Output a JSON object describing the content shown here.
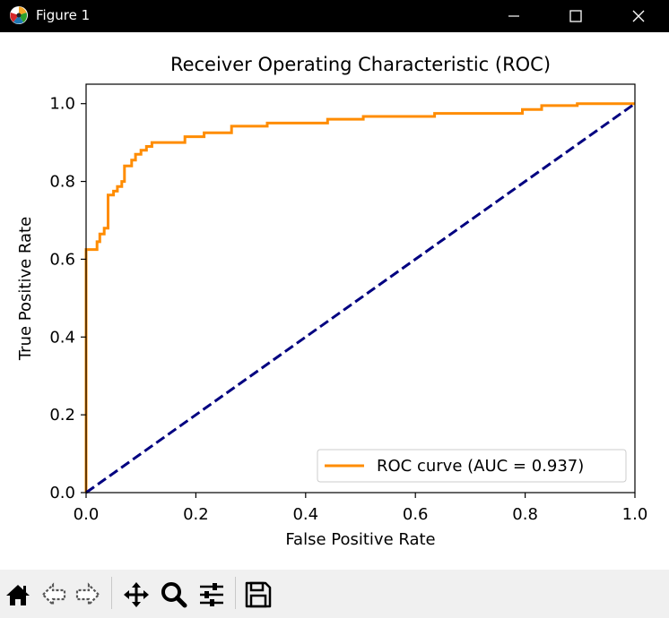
{
  "window": {
    "title": "Figure 1",
    "icons": [
      "matplotlib-logo-icon",
      "minimize-icon",
      "maximize-icon",
      "close-icon"
    ]
  },
  "toolbar": {
    "icons": [
      "home-icon",
      "back-arrow-icon",
      "forward-arrow-icon",
      "pan-move-icon",
      "zoom-magnifier-icon",
      "configure-subplots-icon",
      "save-floppy-icon"
    ]
  },
  "chart_data": {
    "type": "line",
    "title": "Receiver Operating Characteristic (ROC)",
    "xlabel": "False Positive Rate",
    "ylabel": "True Positive Rate",
    "xlim": [
      0.0,
      1.0
    ],
    "ylim": [
      0.0,
      1.05
    ],
    "xticks": [
      "0.0",
      "0.2",
      "0.4",
      "0.6",
      "0.8",
      "1.0"
    ],
    "yticks": [
      "0.0",
      "0.2",
      "0.4",
      "0.6",
      "0.8",
      "1.0"
    ],
    "grid": false,
    "legend_position": "lower-right",
    "series": [
      {
        "name": "ROC curve (AUC = 0.937)",
        "color": "#ff8c00",
        "style": "solid",
        "x": [
          0.0,
          0.0,
          0.0,
          0.02,
          0.02,
          0.025,
          0.025,
          0.033,
          0.033,
          0.04,
          0.04,
          0.05,
          0.05,
          0.057,
          0.057,
          0.065,
          0.065,
          0.07,
          0.07,
          0.083,
          0.083,
          0.09,
          0.09,
          0.1,
          0.1,
          0.11,
          0.11,
          0.12,
          0.12,
          0.18,
          0.18,
          0.215,
          0.215,
          0.265,
          0.265,
          0.33,
          0.33,
          0.44,
          0.44,
          0.505,
          0.505,
          0.635,
          0.635,
          0.795,
          0.795,
          0.83,
          0.83,
          0.895,
          0.895,
          1.0
        ],
        "y": [
          0.0,
          0.61,
          0.625,
          0.625,
          0.645,
          0.645,
          0.665,
          0.665,
          0.68,
          0.68,
          0.765,
          0.765,
          0.775,
          0.775,
          0.787,
          0.787,
          0.8,
          0.8,
          0.84,
          0.84,
          0.855,
          0.855,
          0.87,
          0.87,
          0.88,
          0.88,
          0.89,
          0.89,
          0.9,
          0.9,
          0.915,
          0.915,
          0.925,
          0.925,
          0.942,
          0.942,
          0.95,
          0.95,
          0.96,
          0.96,
          0.967,
          0.967,
          0.975,
          0.975,
          0.985,
          0.985,
          0.995,
          0.995,
          1.0,
          1.0
        ]
      },
      {
        "color": "#000080",
        "style": "dashed",
        "x": [
          0.0,
          1.0
        ],
        "y": [
          0.0,
          1.0
        ]
      }
    ]
  }
}
